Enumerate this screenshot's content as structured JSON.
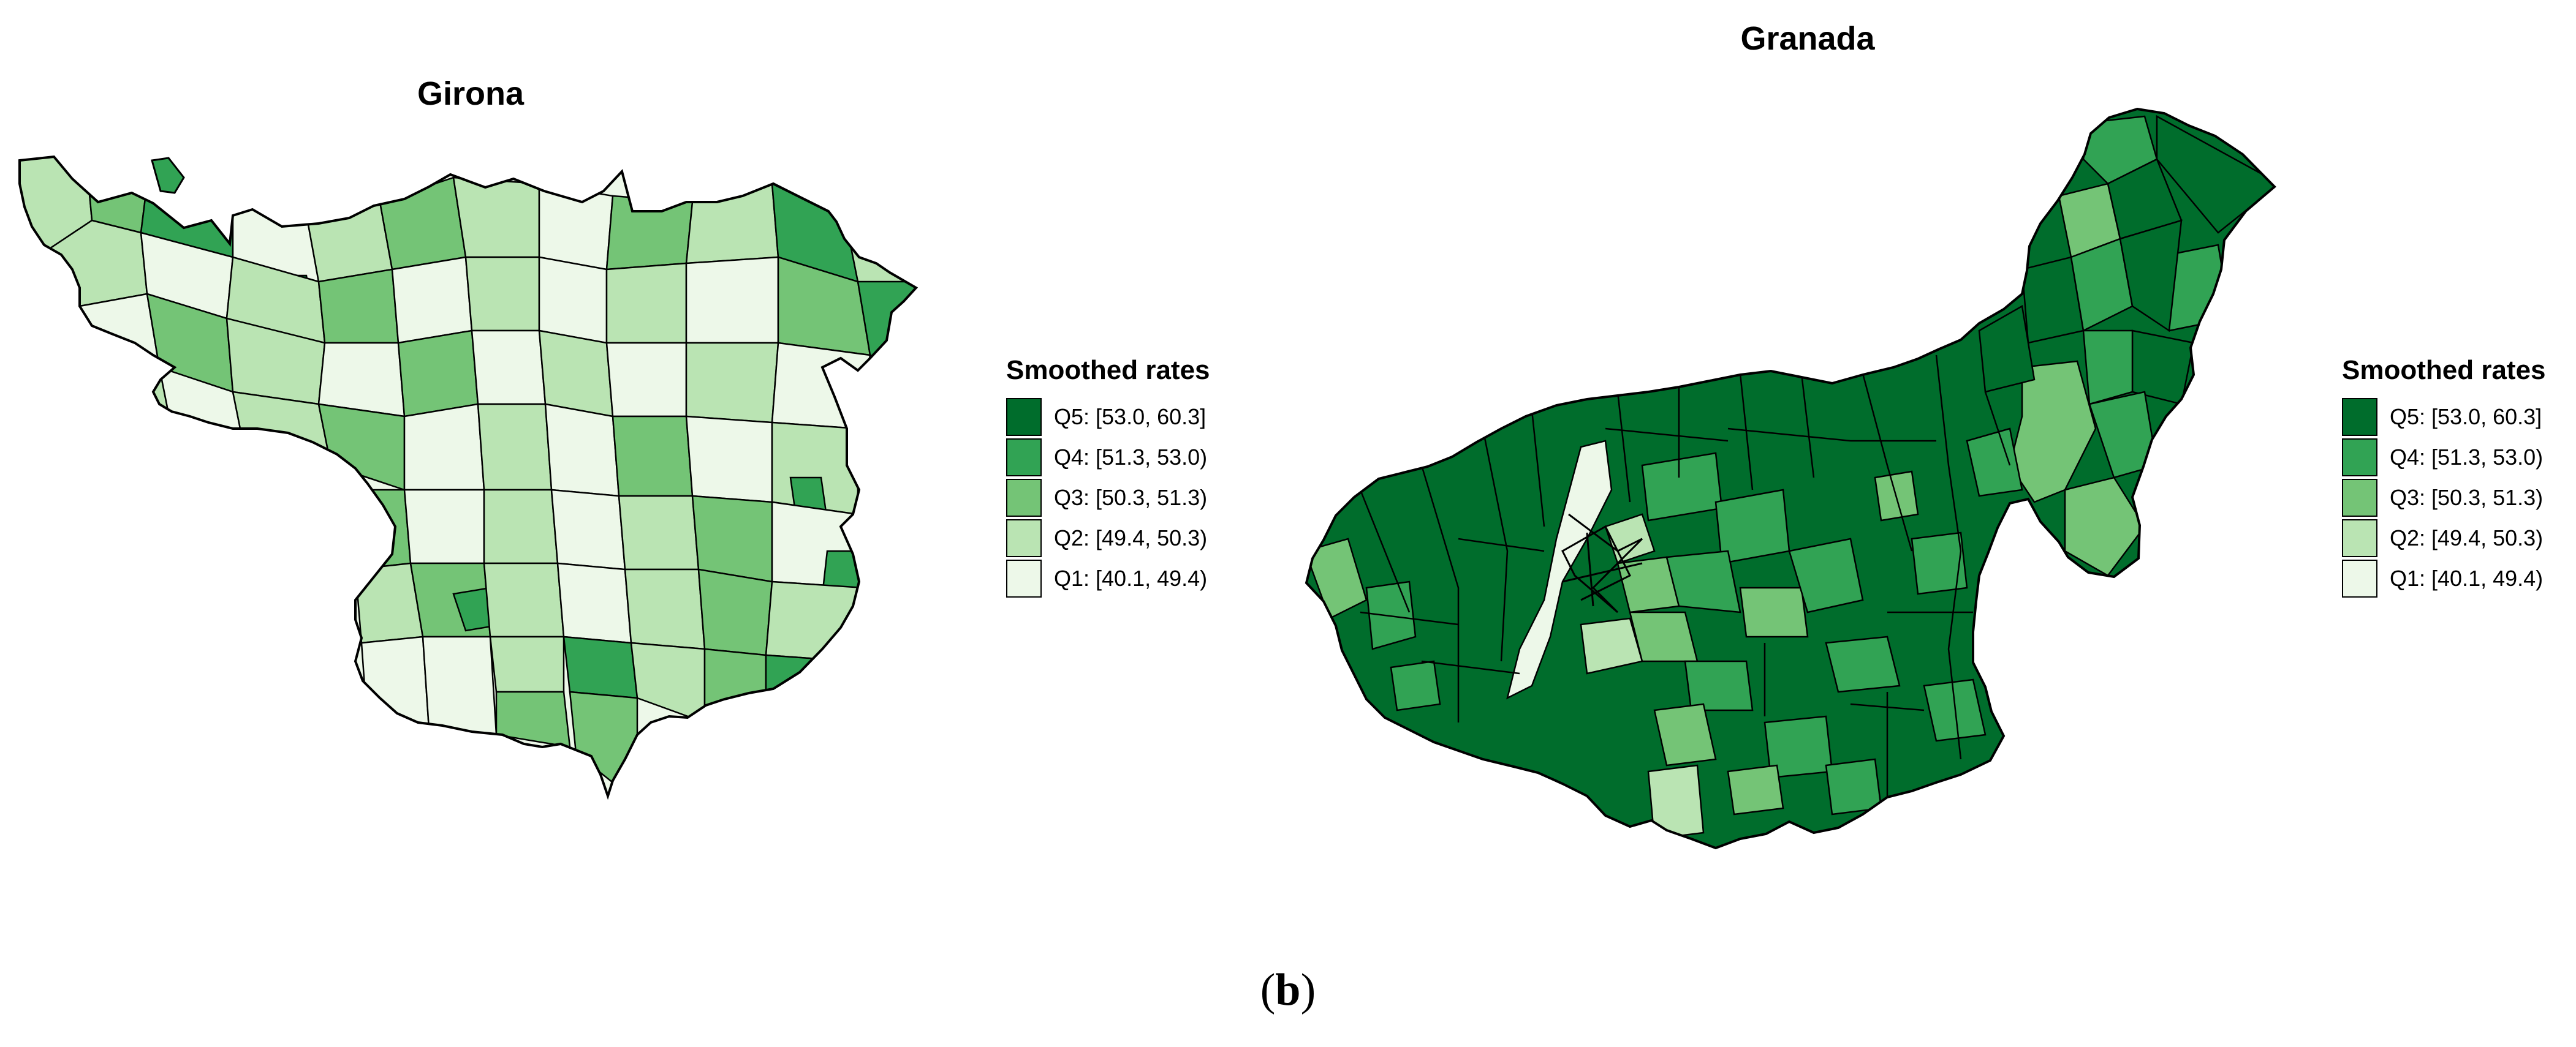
{
  "figure_label": {
    "open": "(",
    "letter": "b",
    "close": ")"
  },
  "colors": {
    "Q5": "#006d2c",
    "Q4": "#31a354",
    "Q3": "#74c476",
    "Q2": "#bae4b3",
    "Q1": "#edf8e9",
    "border": "#000000"
  },
  "maps": [
    {
      "title": "Girona",
      "legend_title": "Smoothed rates",
      "legend": [
        {
          "label": "Q5: [53.0, 60.3]",
          "color": "#006d2c"
        },
        {
          "label": "Q4: [51.3, 53.0)",
          "color": "#31a354"
        },
        {
          "label": "Q3: [50.3, 51.3)",
          "color": "#74c476"
        },
        {
          "label": "Q2: [49.4, 50.3)",
          "color": "#bae4b3"
        },
        {
          "label": "Q1: [40.1, 49.4)",
          "color": "#edf8e9"
        }
      ]
    },
    {
      "title": "Granada",
      "legend_title": "Smoothed rates",
      "legend": [
        {
          "label": "Q5: [53.0, 60.3]",
          "color": "#006d2c"
        },
        {
          "label": "Q4: [51.3, 53.0)",
          "color": "#31a354"
        },
        {
          "label": "Q3: [50.3, 51.3)",
          "color": "#74c476"
        },
        {
          "label": "Q2: [49.4, 50.3)",
          "color": "#bae4b3"
        },
        {
          "label": "Q1: [40.1, 49.4)",
          "color": "#edf8e9"
        }
      ]
    }
  ]
}
